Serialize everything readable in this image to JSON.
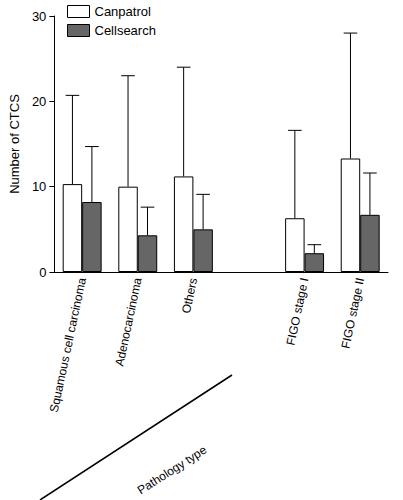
{
  "chart_data": {
    "type": "bar",
    "y_label": "Number of CTCS",
    "categories": [
      "Squamous cell carcinoma",
      "Adenocarcinoma",
      "Others",
      null,
      "FIGO stage I",
      "FIGO stage II"
    ],
    "series": [
      {
        "name": "Canpatrol",
        "color": "#ffffff",
        "values": [
          10.3,
          10.0,
          11.2,
          null,
          6.3,
          13.3
        ],
        "errors": [
          10.4,
          13.0,
          12.8,
          null,
          10.3,
          14.7
        ]
      },
      {
        "name": "Cellsearch",
        "color": "#666666",
        "values": [
          8.2,
          4.3,
          5.0,
          null,
          2.2,
          6.7
        ],
        "errors": [
          6.5,
          3.3,
          4.1,
          null,
          1.0,
          4.9
        ]
      }
    ],
    "annotations": [
      "Pathology type"
    ],
    "ylim": [
      0,
      30
    ],
    "yticks": [
      0,
      10,
      20,
      30
    ],
    "grid": false,
    "legend": "top-left"
  }
}
